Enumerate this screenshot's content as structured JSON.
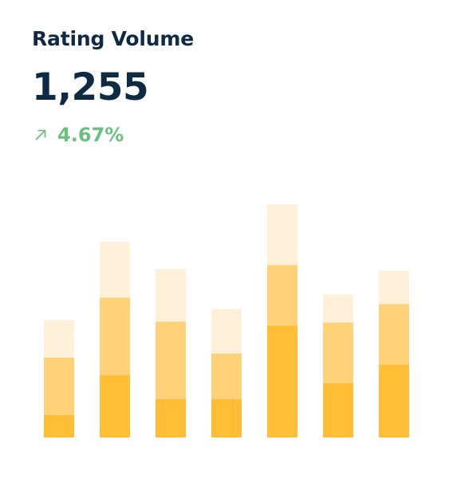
{
  "widget": {
    "title": "Rating Volume",
    "metric": "1,255",
    "trend_icon": "arrow-up-right-icon",
    "trend_value": "4.67%"
  },
  "colors": {
    "heading": "#102a43",
    "positive": "#6cc07f",
    "segment_bottom": "#ffbe36",
    "segment_middle": "#ffd27a",
    "segment_top": "#fff1d9"
  },
  "chart_data": {
    "type": "bar",
    "stacked": true,
    "categories": [
      "",
      "",
      "",
      "",
      "",
      "",
      ""
    ],
    "series": [
      {
        "values": [
          28,
          78,
          48,
          48,
          140,
          68,
          91
        ]
      },
      {
        "values": [
          72,
          97,
          97,
          57,
          76,
          76,
          76
        ]
      },
      {
        "values": [
          47,
          70,
          66,
          56,
          76,
          35,
          42
        ]
      }
    ],
    "ylim": [
      0,
      300
    ],
    "grid": false,
    "legend": "none"
  }
}
